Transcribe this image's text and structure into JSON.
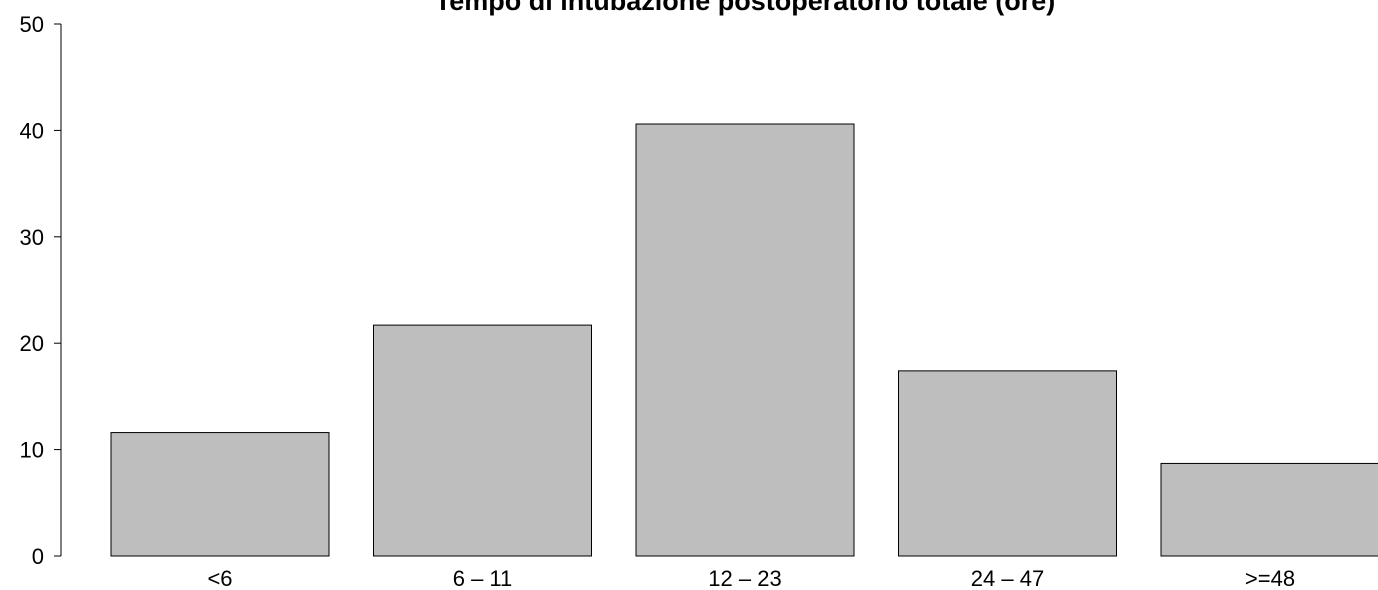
{
  "chart_data": {
    "type": "bar",
    "title": "Tempo di intubazione postoperatorio totale (ore)",
    "xlabel": "",
    "ylabel": "",
    "categories": [
      "<6",
      "6 – 11",
      "12 – 23",
      "24 – 47",
      ">=48"
    ],
    "values": [
      11.6,
      21.7,
      40.6,
      17.4,
      8.7
    ],
    "ylim": [
      0,
      50
    ],
    "yticks": [
      "0",
      "10",
      "20",
      "30",
      "40",
      "50"
    ],
    "grid": false,
    "bar_color": "#bebebe",
    "edge_color": "#000000"
  }
}
